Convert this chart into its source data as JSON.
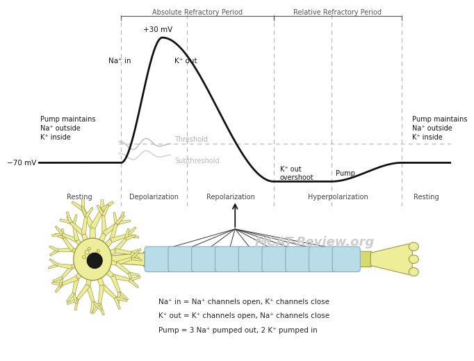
{
  "bg_color": "#ffffff",
  "curve_color": "#111111",
  "threshold_color": "#aaaaaa",
  "subthreshold_color": "#bbbbbb",
  "dashed_color": "#aaaaaa",
  "resting_mv": -70,
  "peak_mv": 30,
  "hyperpolar_mv": -85,
  "threshold_mv": -55,
  "absolute_ref_label": "Absolute Refractory Period",
  "relative_ref_label": "Relative Refractory Period",
  "watermark": "MCAT-Review.org",
  "watermark_color": "#cccccc",
  "neuron_fill": "#eeed99",
  "neuron_edge": "#999944",
  "myelin_fill": "#b8dde8",
  "myelin_edge": "#88aabb",
  "axon_fill": "#d8d870",
  "nucleus_fill": "#222222",
  "neuron_legend_line1": "Na⁺ in = Na⁺ channels open, K⁺ channels close",
  "neuron_legend_line2": "K⁺ out = K⁺ channels open, Na⁺ channels close",
  "neuron_legend_line3": "Pump = 3 Na⁺ pumped out, 2 K⁺ pumped in"
}
